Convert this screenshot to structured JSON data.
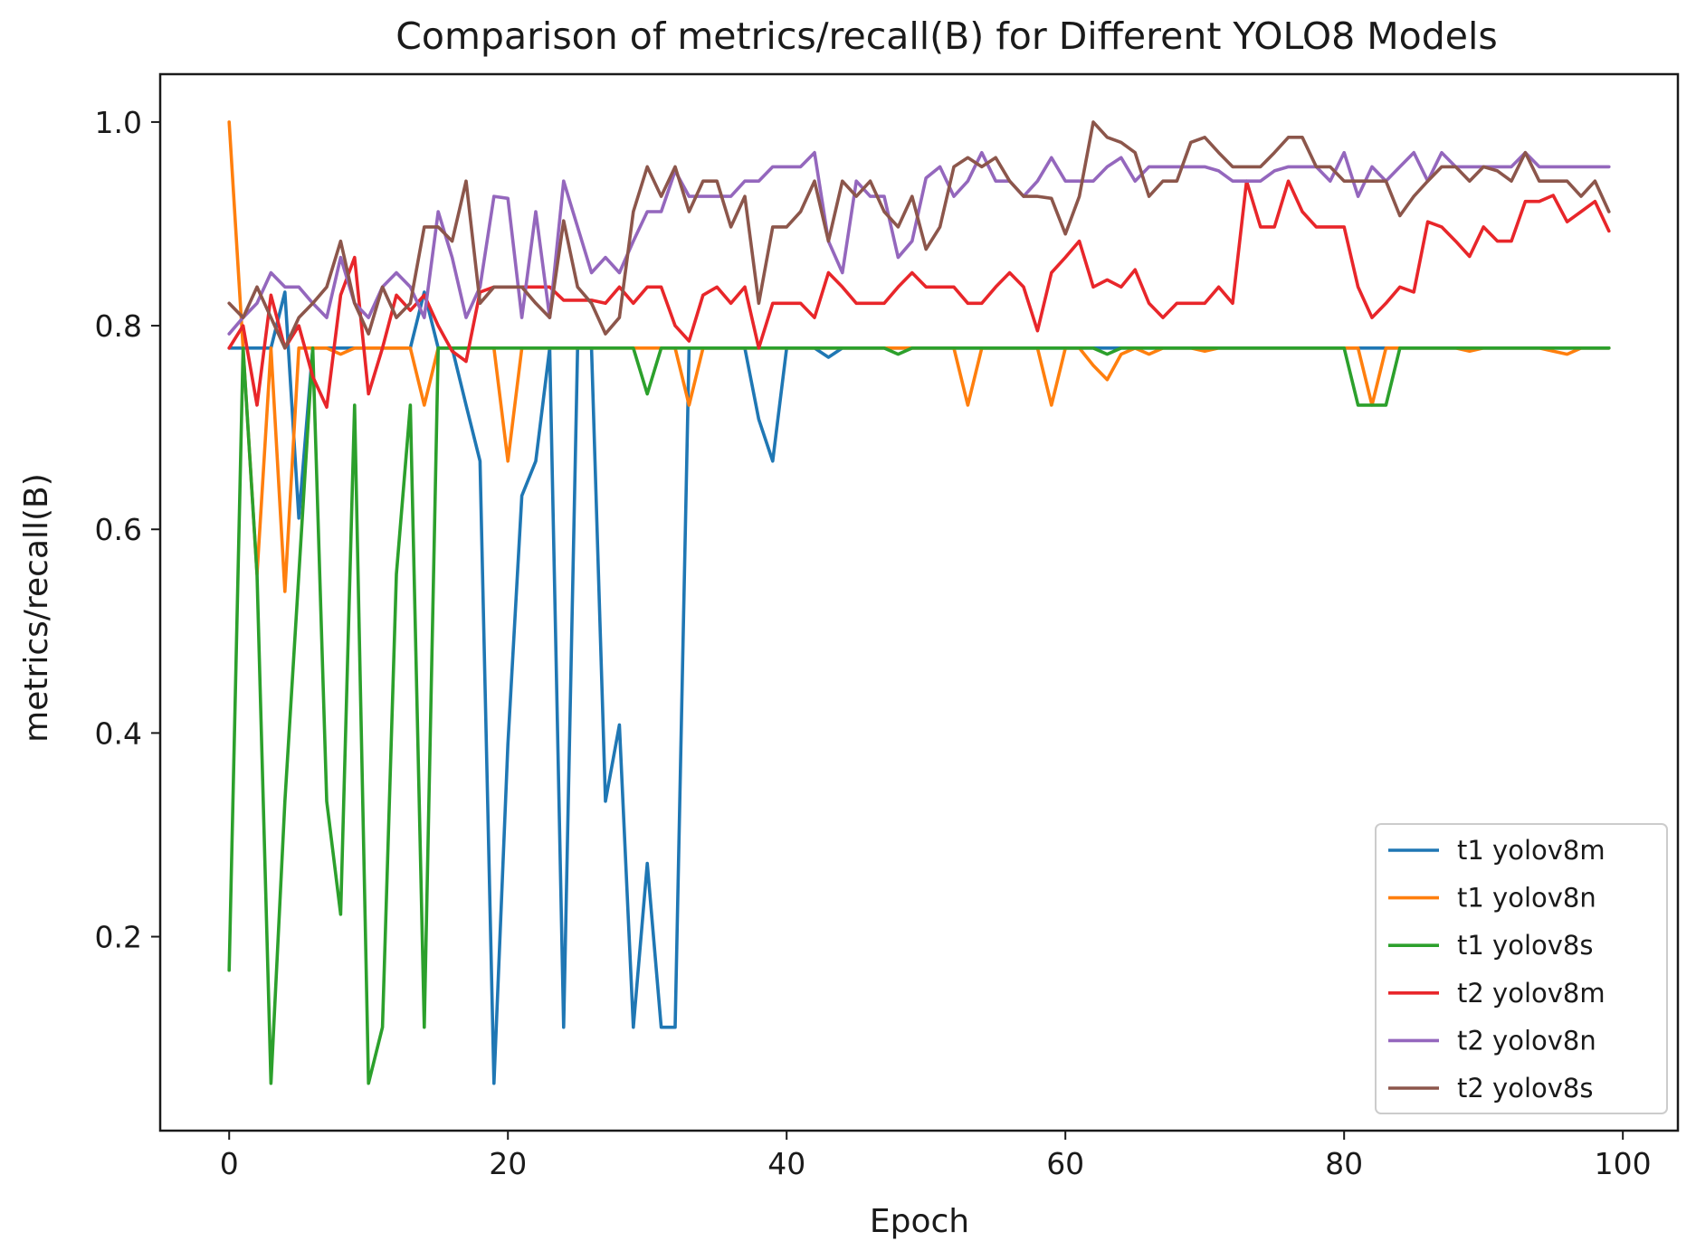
{
  "chart_data": {
    "type": "line",
    "title": "Comparison of metrics/recall(B) for Different YOLO8 Models",
    "xlabel": "Epoch",
    "ylabel": "metrics/recall(B)",
    "xlim": [
      -4.95,
      103.95
    ],
    "ylim": [
      0.0095,
      1.047
    ],
    "xticks": [
      0,
      20,
      40,
      60,
      80,
      100
    ],
    "yticks": [
      0.2,
      0.4,
      0.6,
      0.8,
      1.0
    ],
    "xtick_labels": [
      "0",
      "20",
      "40",
      "60",
      "80",
      "100"
    ],
    "ytick_labels": [
      "0.2",
      "0.4",
      "0.6",
      "0.8",
      "1.0"
    ],
    "legend_position": "lower right",
    "grid": false,
    "series": [
      {
        "name": "t1 yolov8m",
        "color": "#1f77b4",
        "values": [
          0.778,
          0.778,
          0.778,
          0.778,
          0.833,
          0.611,
          0.778,
          0.778,
          0.778,
          0.778,
          0.778,
          0.778,
          0.778,
          0.778,
          0.833,
          0.778,
          0.778,
          0.722,
          0.667,
          0.056,
          0.389,
          0.633,
          0.667,
          0.778,
          0.111,
          0.778,
          0.778,
          0.333,
          0.408,
          0.111,
          0.272,
          0.111,
          0.111,
          0.778,
          0.778,
          0.778,
          0.778,
          0.778,
          0.708,
          0.667,
          0.778,
          0.778,
          0.778,
          0.769,
          0.778,
          0.778,
          0.778,
          0.778,
          0.778,
          0.778,
          0.778,
          0.778,
          0.778,
          0.778,
          0.778,
          0.778,
          0.778,
          0.778,
          0.778,
          0.778,
          0.778,
          0.778,
          0.778,
          0.778,
          0.778,
          0.778,
          0.778,
          0.778,
          0.778,
          0.778,
          0.778,
          0.778,
          0.778,
          0.778,
          0.778,
          0.778,
          0.778,
          0.778,
          0.778,
          0.778,
          0.778,
          0.778,
          0.778,
          0.778,
          0.778,
          0.778,
          0.778,
          0.778,
          0.778,
          0.778,
          0.778,
          0.778,
          0.778,
          0.778,
          0.778,
          0.778,
          0.778,
          0.778,
          0.778,
          0.778
        ]
      },
      {
        "name": "t1 yolov8n",
        "color": "#ff7f0e",
        "values": [
          1.0,
          0.778,
          0.556,
          0.778,
          0.539,
          0.778,
          0.778,
          0.778,
          0.772,
          0.778,
          0.778,
          0.778,
          0.778,
          0.778,
          0.722,
          0.778,
          0.778,
          0.778,
          0.778,
          0.778,
          0.667,
          0.778,
          0.778,
          0.778,
          0.778,
          0.778,
          0.778,
          0.778,
          0.778,
          0.778,
          0.778,
          0.778,
          0.778,
          0.722,
          0.778,
          0.778,
          0.778,
          0.778,
          0.778,
          0.778,
          0.778,
          0.778,
          0.778,
          0.778,
          0.778,
          0.778,
          0.778,
          0.778,
          0.778,
          0.778,
          0.778,
          0.778,
          0.778,
          0.722,
          0.778,
          0.778,
          0.778,
          0.778,
          0.778,
          0.722,
          0.778,
          0.778,
          0.761,
          0.747,
          0.772,
          0.778,
          0.772,
          0.778,
          0.778,
          0.778,
          0.775,
          0.778,
          0.778,
          0.778,
          0.778,
          0.778,
          0.778,
          0.778,
          0.778,
          0.778,
          0.778,
          0.778,
          0.722,
          0.778,
          0.778,
          0.778,
          0.778,
          0.778,
          0.778,
          0.775,
          0.778,
          0.778,
          0.778,
          0.778,
          0.778,
          0.775,
          0.772,
          0.778,
          0.778,
          0.778
        ]
      },
      {
        "name": "t1 yolov8s",
        "color": "#2ca02c",
        "values": [
          0.167,
          0.778,
          0.556,
          0.056,
          0.333,
          0.556,
          0.778,
          0.333,
          0.222,
          0.722,
          0.056,
          0.111,
          0.556,
          0.722,
          0.111,
          0.778,
          0.778,
          0.778,
          0.778,
          0.778,
          0.778,
          0.778,
          0.778,
          0.778,
          0.778,
          0.778,
          0.778,
          0.778,
          0.778,
          0.778,
          0.733,
          0.778,
          0.778,
          0.778,
          0.778,
          0.778,
          0.778,
          0.778,
          0.778,
          0.778,
          0.778,
          0.778,
          0.778,
          0.778,
          0.778,
          0.778,
          0.778,
          0.778,
          0.772,
          0.778,
          0.778,
          0.778,
          0.778,
          0.778,
          0.778,
          0.778,
          0.778,
          0.778,
          0.778,
          0.778,
          0.778,
          0.778,
          0.778,
          0.772,
          0.778,
          0.778,
          0.778,
          0.778,
          0.778,
          0.778,
          0.778,
          0.778,
          0.778,
          0.778,
          0.778,
          0.778,
          0.778,
          0.778,
          0.778,
          0.778,
          0.778,
          0.722,
          0.722,
          0.722,
          0.778,
          0.778,
          0.778,
          0.778,
          0.778,
          0.778,
          0.778,
          0.778,
          0.778,
          0.778,
          0.778,
          0.778,
          0.778,
          0.778,
          0.778,
          0.778
        ]
      },
      {
        "name": "t2 yolov8m",
        "color": "#e8262a",
        "values": [
          0.778,
          0.8,
          0.722,
          0.83,
          0.778,
          0.8,
          0.75,
          0.72,
          0.83,
          0.867,
          0.733,
          0.778,
          0.83,
          0.815,
          0.83,
          0.8,
          0.775,
          0.765,
          0.833,
          0.838,
          0.838,
          0.838,
          0.838,
          0.838,
          0.825,
          0.825,
          0.825,
          0.822,
          0.838,
          0.822,
          0.838,
          0.838,
          0.8,
          0.785,
          0.83,
          0.838,
          0.822,
          0.838,
          0.778,
          0.822,
          0.822,
          0.822,
          0.808,
          0.852,
          0.838,
          0.822,
          0.822,
          0.822,
          0.838,
          0.852,
          0.838,
          0.838,
          0.838,
          0.822,
          0.822,
          0.838,
          0.852,
          0.838,
          0.795,
          0.852,
          0.867,
          0.883,
          0.838,
          0.845,
          0.838,
          0.855,
          0.822,
          0.808,
          0.822,
          0.822,
          0.822,
          0.838,
          0.822,
          0.942,
          0.897,
          0.897,
          0.942,
          0.912,
          0.897,
          0.897,
          0.897,
          0.838,
          0.808,
          0.822,
          0.838,
          0.833,
          0.902,
          0.897,
          0.883,
          0.868,
          0.897,
          0.883,
          0.883,
          0.922,
          0.922,
          0.928,
          0.902,
          0.912,
          0.922,
          0.893
        ]
      },
      {
        "name": "t2 yolov8n",
        "color": "#9467bd",
        "values": [
          0.792,
          0.808,
          0.822,
          0.852,
          0.838,
          0.838,
          0.822,
          0.808,
          0.867,
          0.822,
          0.808,
          0.838,
          0.852,
          0.838,
          0.808,
          0.912,
          0.867,
          0.808,
          0.838,
          0.927,
          0.925,
          0.808,
          0.912,
          0.808,
          0.942,
          0.897,
          0.852,
          0.867,
          0.852,
          0.883,
          0.912,
          0.912,
          0.952,
          0.927,
          0.927,
          0.927,
          0.927,
          0.942,
          0.942,
          0.956,
          0.956,
          0.956,
          0.97,
          0.883,
          0.852,
          0.942,
          0.927,
          0.927,
          0.867,
          0.883,
          0.945,
          0.956,
          0.927,
          0.942,
          0.97,
          0.942,
          0.942,
          0.927,
          0.942,
          0.965,
          0.942,
          0.942,
          0.942,
          0.956,
          0.965,
          0.942,
          0.956,
          0.956,
          0.956,
          0.956,
          0.956,
          0.952,
          0.942,
          0.942,
          0.942,
          0.952,
          0.956,
          0.956,
          0.956,
          0.942,
          0.97,
          0.927,
          0.956,
          0.942,
          0.956,
          0.97,
          0.942,
          0.97,
          0.956,
          0.956,
          0.956,
          0.956,
          0.956,
          0.97,
          0.956,
          0.956,
          0.956,
          0.956,
          0.956,
          0.956
        ]
      },
      {
        "name": "t2 yolov8s",
        "color": "#8c564b",
        "values": [
          0.822,
          0.808,
          0.838,
          0.808,
          0.778,
          0.808,
          0.822,
          0.838,
          0.883,
          0.822,
          0.792,
          0.838,
          0.808,
          0.822,
          0.897,
          0.897,
          0.883,
          0.942,
          0.822,
          0.838,
          0.838,
          0.838,
          0.822,
          0.808,
          0.903,
          0.838,
          0.822,
          0.792,
          0.808,
          0.912,
          0.956,
          0.927,
          0.956,
          0.912,
          0.942,
          0.942,
          0.897,
          0.927,
          0.822,
          0.897,
          0.897,
          0.912,
          0.942,
          0.883,
          0.942,
          0.927,
          0.942,
          0.912,
          0.897,
          0.927,
          0.875,
          0.897,
          0.956,
          0.965,
          0.956,
          0.965,
          0.942,
          0.927,
          0.927,
          0.925,
          0.89,
          0.927,
          1.0,
          0.985,
          0.98,
          0.97,
          0.927,
          0.942,
          0.942,
          0.98,
          0.985,
          0.97,
          0.956,
          0.956,
          0.956,
          0.97,
          0.985,
          0.985,
          0.956,
          0.956,
          0.942,
          0.942,
          0.942,
          0.942,
          0.908,
          0.927,
          0.942,
          0.956,
          0.956,
          0.942,
          0.956,
          0.952,
          0.942,
          0.97,
          0.942,
          0.942,
          0.942,
          0.927,
          0.942,
          0.912
        ]
      }
    ]
  }
}
